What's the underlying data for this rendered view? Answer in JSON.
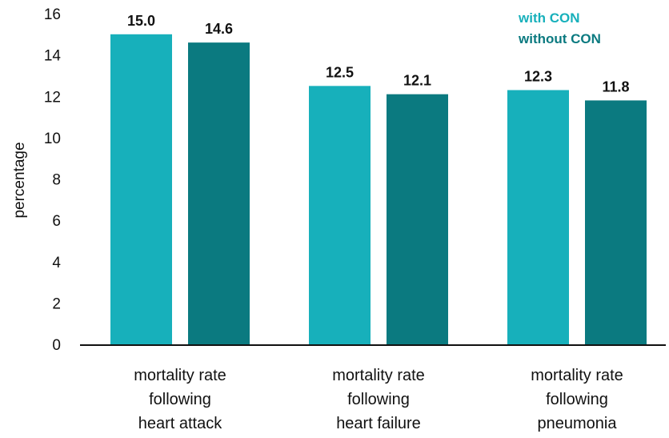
{
  "chart_data": {
    "type": "bar",
    "categories": [
      [
        "mortality rate",
        "following",
        "heart attack"
      ],
      [
        "mortality rate",
        "following",
        "heart failure"
      ],
      [
        "mortality rate",
        "following",
        "pneumonia"
      ]
    ],
    "series": [
      {
        "name": "with CON",
        "color": "#17b0bb",
        "values": [
          15.0,
          12.5,
          12.3
        ],
        "labels": [
          "15.0",
          "12.5",
          "12.3"
        ]
      },
      {
        "name": "without CON",
        "color": "#0b7a80",
        "values": [
          14.6,
          12.1,
          11.8
        ],
        "labels": [
          "14.6",
          "12.1",
          "11.8"
        ]
      }
    ],
    "ylabel": "percentage",
    "ylim": [
      0,
      16
    ],
    "yticks": [
      0,
      2,
      4,
      6,
      8,
      10,
      12,
      14,
      16
    ],
    "grid": false,
    "legend": "top-right"
  }
}
